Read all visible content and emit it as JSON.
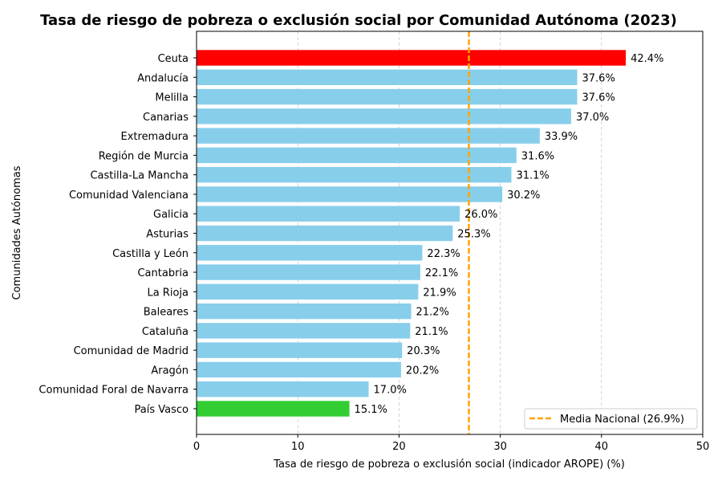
{
  "chart_data": {
    "type": "bar",
    "orientation": "horizontal",
    "title": "Tasa de riesgo de pobreza o exclusión social por Comunidad Autónoma (2023)",
    "xlabel": "Tasa de riesgo de pobreza o exclusión social (indicador AROPE) (%)",
    "ylabel": "Comunidades Autónomas",
    "xlim": [
      0,
      50
    ],
    "xticks": [
      0,
      10,
      20,
      30,
      40,
      50
    ],
    "grid": "x-dashed",
    "categories": [
      "Ceuta",
      "Andalucía",
      "Melilla",
      "Canarias",
      "Extremadura",
      "Región de Murcia",
      "Castilla-La Mancha",
      "Comunidad Valenciana",
      "Galicia",
      "Asturias",
      "Castilla y León",
      "Cantabria",
      "La Rioja",
      "Baleares",
      "Cataluña",
      "Comunidad de Madrid",
      "Aragón",
      "Comunidad Foral de Navarra",
      "País Vasco"
    ],
    "values": [
      42.4,
      37.6,
      37.6,
      37.0,
      33.9,
      31.6,
      31.1,
      30.2,
      26.0,
      25.3,
      22.3,
      22.1,
      21.9,
      21.2,
      21.1,
      20.3,
      20.2,
      17.0,
      15.1
    ],
    "value_labels": [
      "42.4%",
      "37.6%",
      "37.6%",
      "37.0%",
      "33.9%",
      "31.6%",
      "31.1%",
      "30.2%",
      "26.0%",
      "25.3%",
      "22.3%",
      "22.1%",
      "21.9%",
      "21.2%",
      "21.1%",
      "20.3%",
      "20.2%",
      "17.0%",
      "15.1%"
    ],
    "colors": {
      "default": "#87ceeb",
      "highest": "#ff0000",
      "lowest": "#32cd32",
      "reference_line": "#ffa500",
      "grid": "#c8c8c8"
    },
    "reference_line": {
      "value": 26.9,
      "label": "Media Nacional (26.9%)",
      "style": "dashed"
    },
    "legend_position": "bottom-right"
  }
}
